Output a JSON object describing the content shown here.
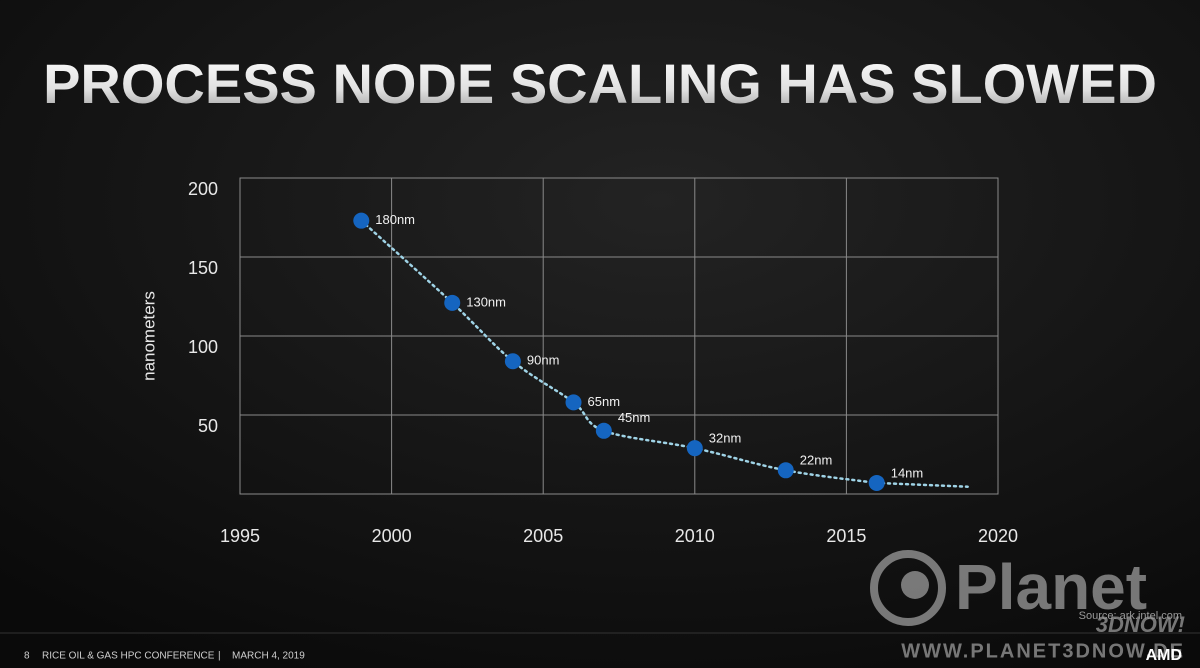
{
  "chart_data": {
    "type": "scatter",
    "title": "PROCESS NODE SCALING HAS SLOWED",
    "y_label": "nanometers",
    "x": [
      1999,
      2002,
      2004,
      2006,
      2007,
      2010,
      2013,
      2016
    ],
    "series": [
      {
        "color": "#1565c0",
        "values": [
          173,
          121,
          84,
          58,
          40,
          29,
          15,
          7
        ]
      }
    ],
    "point_labels": [
      "180nm",
      "130nm",
      "90nm",
      "65nm",
      "45nm",
      "32nm",
      "22nm",
      "14nm"
    ],
    "trend_color": "#9fd3e6",
    "xlim": [
      1995,
      2020
    ],
    "xticks": [
      1995,
      2000,
      2005,
      2010,
      2015,
      2020
    ],
    "ylim": [
      0,
      200
    ],
    "yticks": [
      50,
      100,
      150,
      200
    ],
    "grid": true
  },
  "footer": {
    "page": "8",
    "event": "RICE OIL & GAS HPC CONFERENCE",
    "separator": "|",
    "date": "MARCH 4, 2019",
    "source": "Source: ark.intel.com",
    "brand": "AMD"
  },
  "watermark": {
    "name": "Planet",
    "sub": "3DNOW!",
    "url": "WWW.PLANET3DNOW.DE"
  }
}
